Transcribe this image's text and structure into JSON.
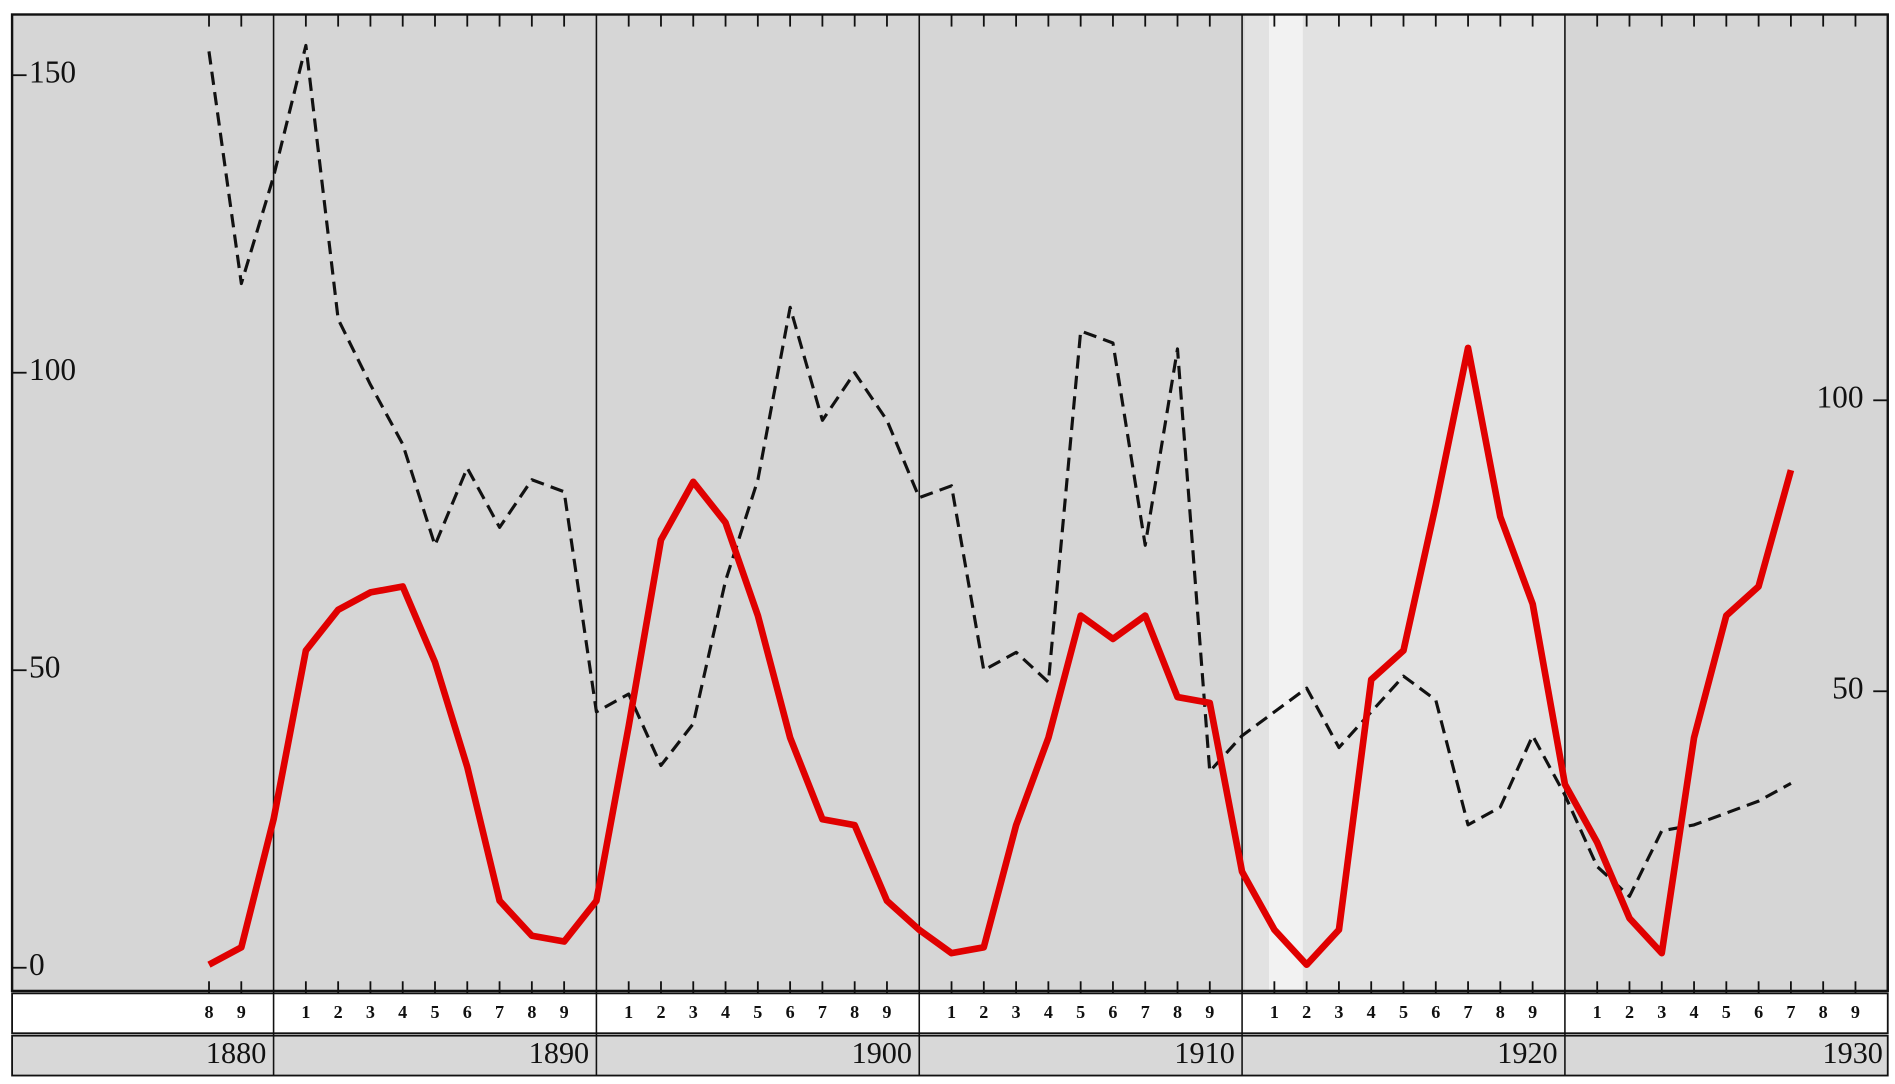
{
  "chart_data": {
    "type": "line",
    "x": [
      1878,
      1879,
      1880,
      1881,
      1882,
      1883,
      1884,
      1885,
      1886,
      1887,
      1888,
      1889,
      1890,
      1891,
      1892,
      1893,
      1894,
      1895,
      1896,
      1897,
      1898,
      1899,
      1900,
      1901,
      1902,
      1903,
      1904,
      1905,
      1906,
      1907,
      1908,
      1909,
      1910,
      1911,
      1912,
      1913,
      1914,
      1915,
      1916,
      1917,
      1918,
      1919,
      1920,
      1921,
      1922,
      1923,
      1924,
      1925,
      1926,
      1927
    ],
    "series": [
      {
        "name": null,
        "color": "#111111",
        "dash": true,
        "values": [
          154,
          115,
          133,
          155,
          109,
          98,
          88,
          71,
          84,
          74,
          82,
          80,
          43,
          46,
          34,
          41,
          65,
          82,
          111,
          92,
          100,
          92,
          79,
          81,
          50,
          53,
          48,
          107,
          105,
          71,
          104,
          33,
          39,
          43,
          47,
          37,
          43,
          49,
          45,
          24,
          27,
          39,
          29,
          17,
          12,
          23,
          24,
          26,
          28,
          31
        ]
      },
      {
        "name": null,
        "color": "#e00000",
        "axis": "y2",
        "values": [
          3,
          6,
          28,
          57,
          64,
          67,
          68,
          55,
          37,
          14,
          8,
          7,
          14,
          44,
          76,
          86,
          79,
          63,
          42,
          28,
          27,
          14,
          9,
          5,
          6,
          27,
          42,
          63,
          59,
          63,
          49,
          48,
          19,
          9,
          3,
          9,
          52,
          57,
          82,
          109,
          80,
          65,
          34,
          24,
          11,
          5,
          42,
          63,
          68,
          88
        ]
      }
    ],
    "xlim": [
      1871.9,
      1930
    ],
    "ylim": [
      -3.9,
      160.2
    ],
    "yticks": [
      0,
      50,
      100,
      150
    ],
    "y2lim": [
      -1.5,
      166.3
    ],
    "y2ticks": [
      50,
      100
    ],
    "xticks": [
      {
        "value": 1878,
        "label": "8"
      },
      {
        "value": 1879,
        "label": "9"
      },
      {
        "value": 1881,
        "label": "1"
      },
      {
        "value": 1882,
        "label": "2"
      },
      {
        "value": 1883,
        "label": "3"
      },
      {
        "value": 1884,
        "label": "4"
      },
      {
        "value": 1885,
        "label": "5"
      },
      {
        "value": 1886,
        "label": "6"
      },
      {
        "value": 1887,
        "label": "7"
      },
      {
        "value": 1888,
        "label": "8"
      },
      {
        "value": 1889,
        "label": "9"
      },
      {
        "value": 1891,
        "label": "1"
      },
      {
        "value": 1892,
        "label": "2"
      },
      {
        "value": 1893,
        "label": "3"
      },
      {
        "value": 1894,
        "label": "4"
      },
      {
        "value": 1895,
        "label": "5"
      },
      {
        "value": 1896,
        "label": "6"
      },
      {
        "value": 1897,
        "label": "7"
      },
      {
        "value": 1898,
        "label": "8"
      },
      {
        "value": 1899,
        "label": "9"
      },
      {
        "value": 1901,
        "label": "1"
      },
      {
        "value": 1902,
        "label": "2"
      },
      {
        "value": 1903,
        "label": "3"
      },
      {
        "value": 1904,
        "label": "4"
      },
      {
        "value": 1905,
        "label": "5"
      },
      {
        "value": 1906,
        "label": "6"
      },
      {
        "value": 1907,
        "label": "7"
      },
      {
        "value": 1908,
        "label": "8"
      },
      {
        "value": 1909,
        "label": "9"
      },
      {
        "value": 1911,
        "label": "1"
      },
      {
        "value": 1912,
        "label": "2"
      },
      {
        "value": 1913,
        "label": "3"
      },
      {
        "value": 1914,
        "label": "4"
      },
      {
        "value": 1915,
        "label": "5"
      },
      {
        "value": 1916,
        "label": "6"
      },
      {
        "value": 1917,
        "label": "7"
      },
      {
        "value": 1918,
        "label": "8"
      },
      {
        "value": 1919,
        "label": "9"
      },
      {
        "value": 1921,
        "label": "1"
      },
      {
        "value": 1922,
        "label": "2"
      },
      {
        "value": 1923,
        "label": "3"
      },
      {
        "value": 1924,
        "label": "4"
      },
      {
        "value": 1925,
        "label": "5"
      },
      {
        "value": 1926,
        "label": "6"
      },
      {
        "value": 1927,
        "label": "7"
      },
      {
        "value": 1928,
        "label": "8"
      },
      {
        "value": 1929,
        "label": "9"
      }
    ],
    "xticks_major": [
      1880,
      1890,
      1900,
      1910,
      1920,
      1930
    ]
  }
}
